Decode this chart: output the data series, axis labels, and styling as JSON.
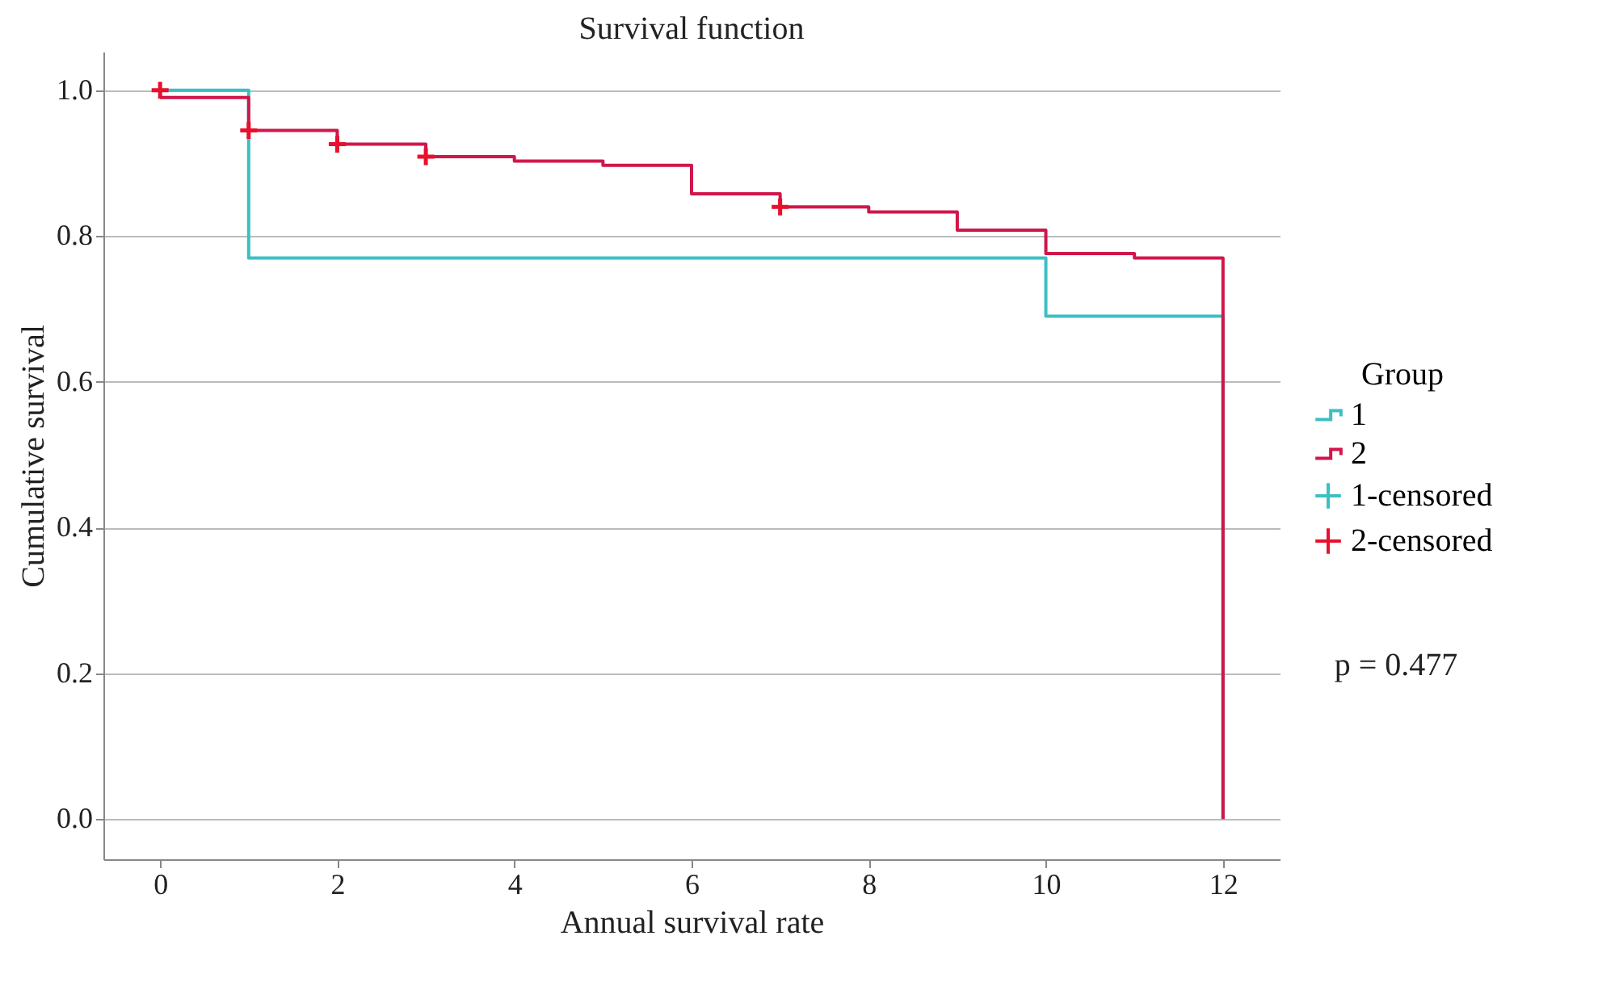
{
  "chart_data": {
    "type": "step",
    "title": "Survival function",
    "xlabel": "Annual survival rate",
    "ylabel": "Cumulative survival",
    "legend_title": "Group",
    "annotations": [
      "p = 0.477"
    ],
    "xlim": [
      -0.64,
      12.64
    ],
    "xticks": [
      0,
      2,
      4,
      6,
      8,
      10,
      12
    ],
    "ylim": [
      -0.055,
      1.053
    ],
    "yticks": [
      {
        "value": 0,
        "label": "0.0"
      },
      0.2,
      0.4,
      0.6,
      0.8,
      {
        "value": 1,
        "label": "1.0"
      }
    ],
    "grid": "y",
    "legend": "right",
    "series": [
      {
        "name": "1",
        "marker": "none",
        "color": "#3cbfc4",
        "x": [
          0,
          1,
          10,
          12,
          12
        ],
        "values": [
          1.0,
          0.77,
          0.69,
          0.69,
          0
        ]
      },
      {
        "name": "2",
        "marker": "none",
        "color": "#d0164a",
        "x": [
          0,
          1,
          2,
          3,
          4,
          5,
          6,
          7,
          8,
          9,
          10,
          11,
          12,
          12
        ],
        "values": [
          0.99,
          0.945,
          0.926,
          0.909,
          0.903,
          0.897,
          0.858,
          0.84,
          0.833,
          0.808,
          0.776,
          0.77,
          0.77,
          0
        ]
      },
      {
        "name": "1-censored",
        "type": "scatter",
        "marker": "cross",
        "color": "#3cbfc4"
      },
      {
        "name": "2-censored",
        "type": "scatter",
        "marker": "cross",
        "color": "#e8102c",
        "x": [
          0,
          1,
          2,
          3,
          7
        ],
        "values": [
          1.0,
          0.945,
          0.926,
          0.909,
          0.84
        ]
      }
    ]
  }
}
